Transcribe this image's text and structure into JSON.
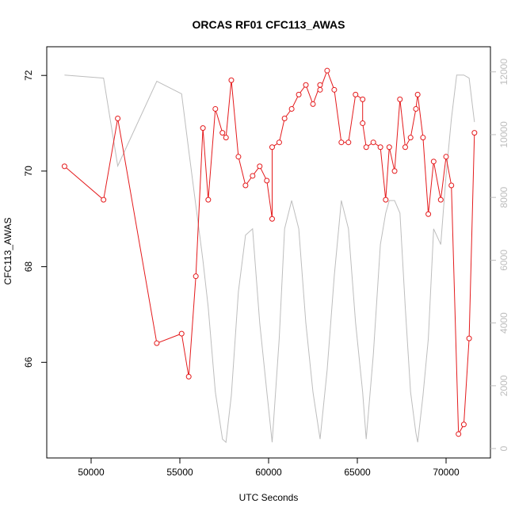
{
  "chart_data": {
    "type": "line",
    "title": "ORCAS RF01 CFC113_AWAS",
    "xlabel": "UTC Seconds",
    "ylabel": "CFC113_AWAS",
    "y2label": "",
    "xlim": [
      47500,
      72500
    ],
    "ylim": [
      64,
      72.6
    ],
    "y2lim": [
      -300,
      12800
    ],
    "x_ticks": [
      50000,
      55000,
      60000,
      65000,
      70000
    ],
    "y_ticks": [
      66,
      68,
      70,
      72
    ],
    "y2_ticks": [
      0,
      2000,
      4000,
      6000,
      8000,
      10000,
      12000
    ],
    "grid": false,
    "series": [
      {
        "role": "primary",
        "axis": "left",
        "color": "#e41a1c",
        "marker": "open-circle",
        "x": [
          48500,
          50700,
          51500,
          53700,
          55100,
          55500,
          55900,
          56300,
          56600,
          57000,
          57400,
          57600,
          57900,
          58300,
          58700,
          59100,
          59500,
          59900,
          60200,
          60200,
          60600,
          60900,
          61300,
          61700,
          62100,
          62500,
          62900,
          62900,
          63300,
          63700,
          64100,
          64500,
          64900,
          65300,
          65300,
          65500,
          65900,
          66300,
          66600,
          66800,
          67100,
          67400,
          67700,
          68000,
          68300,
          68400,
          68700,
          69000,
          69300,
          69700,
          70000,
          70300,
          70700,
          71000,
          71300,
          71600
        ],
        "y": [
          70.1,
          69.4,
          71.1,
          66.4,
          66.6,
          65.7,
          67.8,
          70.9,
          69.4,
          71.3,
          70.8,
          70.7,
          71.9,
          70.3,
          69.7,
          69.9,
          70.1,
          69.8,
          69.0,
          70.5,
          70.6,
          71.1,
          71.3,
          71.6,
          71.8,
          71.4,
          71.8,
          71.7,
          72.1,
          71.7,
          70.6,
          70.6,
          71.6,
          71.5,
          71.0,
          70.5,
          70.6,
          70.5,
          69.4,
          70.5,
          70.0,
          71.5,
          70.5,
          70.7,
          71.3,
          71.6,
          70.7,
          69.1,
          70.2,
          69.4,
          70.3,
          69.7,
          64.5,
          64.7,
          66.5,
          70.8
        ]
      },
      {
        "role": "secondary",
        "axis": "right",
        "color": "#bdbdbd",
        "x": [
          48500,
          50700,
          51500,
          53700,
          55100,
          55500,
          56300,
          56600,
          57000,
          57400,
          57600,
          57900,
          58300,
          58700,
          59100,
          59500,
          59900,
          60200,
          60600,
          60900,
          61300,
          61700,
          62100,
          62500,
          62900,
          63300,
          63700,
          64100,
          64500,
          64900,
          65300,
          65500,
          65900,
          66300,
          66600,
          66800,
          67100,
          67400,
          67700,
          68000,
          68300,
          68400,
          68700,
          69000,
          69300,
          69700,
          70000,
          70300,
          70600,
          71000,
          71300,
          71600
        ],
        "y": [
          11900,
          11800,
          9000,
          11700,
          11300,
          9500,
          6000,
          4500,
          1800,
          300,
          200,
          1700,
          5000,
          6800,
          7000,
          4000,
          1800,
          200,
          3500,
          7000,
          7900,
          7000,
          4000,
          1800,
          300,
          2500,
          5500,
          7900,
          7000,
          4000,
          1800,
          300,
          3000,
          6500,
          7500,
          7900,
          7900,
          7500,
          4500,
          1800,
          500,
          200,
          1700,
          3500,
          7000,
          6500,
          8700,
          10500,
          11900,
          11900,
          11800,
          10400
        ]
      }
    ]
  }
}
